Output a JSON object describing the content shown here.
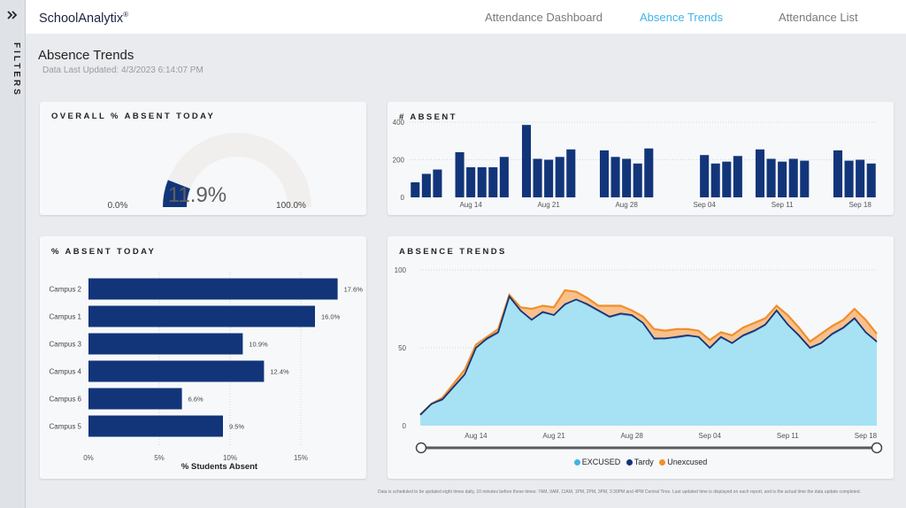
{
  "app": {
    "brand": "SchoolAnalytix",
    "brand_mark": "®",
    "filters_label": "FILTERS"
  },
  "nav": {
    "items": [
      "Attendance Dashboard",
      "Absence Trends",
      "Attendance List"
    ],
    "active": "Absence Trends"
  },
  "page": {
    "title": "Absence Trends",
    "updated": "Data Last Updated: 4/3/2023 6:14:07 PM"
  },
  "gauge": {
    "title": "OVERALL % ABSENT TODAY",
    "value": 11.9,
    "value_label": "11.9%",
    "min_label": "0.0%",
    "max_label": "100.0%",
    "fill_color": "#12357a",
    "track_color": "#f0efee"
  },
  "chart_data": [
    {
      "type": "bar",
      "title": "# ABSENT",
      "ylim": [
        0,
        400
      ],
      "y_ticks": [
        0,
        200,
        400
      ],
      "x_tick_labels": [
        "Aug 14",
        "Aug 21",
        "Aug 28",
        "Sep 04",
        "Sep 11",
        "Sep 18"
      ],
      "values": [
        80,
        125,
        148,
        null,
        240,
        160,
        160,
        160,
        215,
        null,
        385,
        205,
        200,
        215,
        255,
        null,
        null,
        250,
        215,
        205,
        180,
        260,
        null,
        null,
        null,
        null,
        225,
        180,
        190,
        220,
        null,
        255,
        205,
        190,
        205,
        195,
        null,
        null,
        250,
        195,
        200,
        180
      ],
      "color": "#12357a"
    },
    {
      "type": "bar",
      "title": "% ABSENT TODAY",
      "orientation": "horizontal",
      "categories": [
        "Campus 2",
        "Campus 1",
        "Campus 3",
        "Campus 4",
        "Campus 6",
        "Campus 5"
      ],
      "values": [
        17.6,
        16.0,
        10.9,
        12.4,
        6.6,
        9.5
      ],
      "value_labels": [
        "17.6%",
        "16.0%",
        "10.9%",
        "12.4%",
        "6.6%",
        "9.5%"
      ],
      "xlabel": "% Students Absent",
      "xlim": [
        0,
        18
      ],
      "x_ticks": [
        0,
        5,
        10,
        15
      ],
      "x_tick_labels": [
        "0%",
        "5%",
        "10%",
        "15%"
      ],
      "color": "#12357a"
    },
    {
      "type": "area",
      "title": "ABSENCE TRENDS",
      "ylim": [
        0,
        100
      ],
      "y_ticks": [
        0,
        50,
        100
      ],
      "x_tick_labels": [
        "Aug 14",
        "Aug 21",
        "Aug 28",
        "Sep 04",
        "Sep 11",
        "Sep 18"
      ],
      "series": [
        {
          "name": "EXCUSED",
          "color": "#a6e2f4",
          "values": [
            7,
            14,
            16,
            24,
            32,
            50,
            55,
            59,
            82,
            73,
            68,
            72,
            71,
            77,
            81,
            77,
            73,
            69,
            71,
            70,
            66,
            55,
            56,
            56,
            57,
            57,
            49,
            56,
            53,
            57,
            60,
            64,
            73,
            65,
            57,
            49,
            53,
            58,
            62,
            68,
            60,
            53
          ]
        },
        {
          "name": "Tardy",
          "color": "#12357a",
          "values": [
            0,
            0,
            1,
            1,
            1,
            0,
            1,
            1,
            1,
            1,
            0,
            1,
            0,
            1,
            0,
            1,
            1,
            1,
            1,
            1,
            0,
            1,
            0,
            1,
            1,
            0,
            1,
            1,
            0,
            1,
            1,
            1,
            1,
            0,
            1,
            1,
            0,
            1,
            1,
            1,
            0,
            1
          ]
        },
        {
          "name": "Unexcused",
          "color": "#f28e2b",
          "values": [
            0,
            0,
            1,
            2,
            3,
            2,
            1,
            2,
            1,
            2,
            7,
            4,
            5,
            9,
            5,
            4,
            3,
            7,
            5,
            3,
            4,
            6,
            5,
            5,
            4,
            4,
            5,
            3,
            5,
            5,
            5,
            4,
            3,
            6,
            5,
            4,
            6,
            5,
            5,
            6,
            8,
            5
          ]
        }
      ],
      "legend": [
        "EXCUSED",
        "Tardy",
        "Unexcused"
      ]
    }
  ],
  "footnote": "Data is scheduled to be updated eight times daily, 10 minutes before these times: 7AM, 9AM, 11AM, 1PM, 2PM, 3PM, 3:30PM and 4PM Central Time. Last updated time is displayed on each report, and is the actual time the data update completed."
}
